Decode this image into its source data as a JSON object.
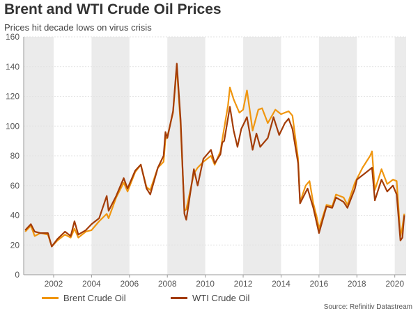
{
  "chart_data": {
    "type": "line",
    "title": "Brent and WTI Crude Oil Prices",
    "subtitle": "Prices hit decade lows on virus crisis",
    "source": "Source: Refinitiv Datastream",
    "xlim": [
      2000.42,
      2020.6
    ],
    "ylim": [
      0,
      160
    ],
    "x_ticks": [
      2002,
      2004,
      2006,
      2008,
      2010,
      2012,
      2014,
      2016,
      2018,
      2020
    ],
    "y_ticks": [
      0,
      20,
      40,
      60,
      80,
      100,
      120,
      140,
      160
    ],
    "grid": "horizontal",
    "shaded_bands": "alternating two-year bands",
    "legend_position": "bottom",
    "series": [
      {
        "name": "Brent Crude Oil",
        "color": "#f0960f",
        "points": [
          [
            2000.5,
            29
          ],
          [
            2000.8,
            33
          ],
          [
            2001.0,
            26
          ],
          [
            2001.3,
            28
          ],
          [
            2001.7,
            27
          ],
          [
            2001.9,
            19
          ],
          [
            2002.2,
            23
          ],
          [
            2002.6,
            27
          ],
          [
            2002.9,
            25
          ],
          [
            2003.1,
            31
          ],
          [
            2003.3,
            25
          ],
          [
            2003.7,
            29
          ],
          [
            2004.0,
            30
          ],
          [
            2004.4,
            36
          ],
          [
            2004.8,
            41
          ],
          [
            2004.9,
            38
          ],
          [
            2005.3,
            52
          ],
          [
            2005.7,
            62
          ],
          [
            2005.9,
            56
          ],
          [
            2006.3,
            69
          ],
          [
            2006.6,
            74
          ],
          [
            2006.9,
            59
          ],
          [
            2007.1,
            57
          ],
          [
            2007.5,
            72
          ],
          [
            2007.8,
            76
          ],
          [
            2007.9,
            91
          ],
          [
            2008.0,
            93
          ],
          [
            2008.3,
            109
          ],
          [
            2008.5,
            140
          ],
          [
            2008.7,
            100
          ],
          [
            2008.9,
            43
          ],
          [
            2009.0,
            44
          ],
          [
            2009.4,
            68
          ],
          [
            2009.6,
            72
          ],
          [
            2009.9,
            76
          ],
          [
            2010.3,
            80
          ],
          [
            2010.5,
            74
          ],
          [
            2010.8,
            83
          ],
          [
            2010.9,
            91
          ],
          [
            2011.2,
            114
          ],
          [
            2011.3,
            126
          ],
          [
            2011.5,
            118
          ],
          [
            2011.8,
            109
          ],
          [
            2012.0,
            111
          ],
          [
            2012.2,
            124
          ],
          [
            2012.5,
            97
          ],
          [
            2012.8,
            111
          ],
          [
            2013.0,
            112
          ],
          [
            2013.3,
            102
          ],
          [
            2013.7,
            111
          ],
          [
            2014.0,
            108
          ],
          [
            2014.4,
            110
          ],
          [
            2014.6,
            107
          ],
          [
            2014.9,
            78
          ],
          [
            2015.0,
            49
          ],
          [
            2015.3,
            60
          ],
          [
            2015.5,
            63
          ],
          [
            2015.7,
            48
          ],
          [
            2015.9,
            38
          ],
          [
            2016.0,
            31
          ],
          [
            2016.4,
            47
          ],
          [
            2016.7,
            46
          ],
          [
            2016.9,
            54
          ],
          [
            2017.3,
            52
          ],
          [
            2017.5,
            47
          ],
          [
            2017.9,
            62
          ],
          [
            2018.3,
            72
          ],
          [
            2018.7,
            80
          ],
          [
            2018.8,
            83
          ],
          [
            2018.95,
            57
          ],
          [
            2019.3,
            71
          ],
          [
            2019.6,
            61
          ],
          [
            2019.9,
            64
          ],
          [
            2020.1,
            63
          ],
          [
            2020.3,
            26
          ],
          [
            2020.4,
            32
          ],
          [
            2020.5,
            41
          ]
        ]
      },
      {
        "name": "WTI Crude Oil",
        "color": "#a33c07",
        "points": [
          [
            2000.5,
            30
          ],
          [
            2000.8,
            34
          ],
          [
            2001.0,
            29
          ],
          [
            2001.3,
            28
          ],
          [
            2001.7,
            28
          ],
          [
            2001.9,
            19
          ],
          [
            2002.2,
            24
          ],
          [
            2002.6,
            29
          ],
          [
            2002.9,
            26
          ],
          [
            2003.1,
            36
          ],
          [
            2003.3,
            27
          ],
          [
            2003.7,
            30
          ],
          [
            2004.0,
            34
          ],
          [
            2004.4,
            38
          ],
          [
            2004.8,
            53
          ],
          [
            2004.9,
            43
          ],
          [
            2005.3,
            53
          ],
          [
            2005.7,
            65
          ],
          [
            2005.9,
            58
          ],
          [
            2006.3,
            70
          ],
          [
            2006.6,
            74
          ],
          [
            2006.9,
            58
          ],
          [
            2007.1,
            54
          ],
          [
            2007.5,
            72
          ],
          [
            2007.8,
            80
          ],
          [
            2007.9,
            96
          ],
          [
            2008.0,
            92
          ],
          [
            2008.3,
            110
          ],
          [
            2008.5,
            142
          ],
          [
            2008.7,
            104
          ],
          [
            2008.9,
            41
          ],
          [
            2009.0,
            37
          ],
          [
            2009.4,
            71
          ],
          [
            2009.6,
            60
          ],
          [
            2009.9,
            78
          ],
          [
            2010.3,
            84
          ],
          [
            2010.5,
            75
          ],
          [
            2010.8,
            81
          ],
          [
            2010.9,
            89
          ],
          [
            2011.0,
            90
          ],
          [
            2011.3,
            113
          ],
          [
            2011.5,
            97
          ],
          [
            2011.7,
            86
          ],
          [
            2011.9,
            98
          ],
          [
            2012.2,
            106
          ],
          [
            2012.5,
            84
          ],
          [
            2012.7,
            95
          ],
          [
            2012.9,
            86
          ],
          [
            2013.3,
            92
          ],
          [
            2013.6,
            106
          ],
          [
            2013.9,
            94
          ],
          [
            2014.2,
            102
          ],
          [
            2014.4,
            105
          ],
          [
            2014.6,
            98
          ],
          [
            2014.9,
            75
          ],
          [
            2015.0,
            48
          ],
          [
            2015.4,
            58
          ],
          [
            2015.7,
            45
          ],
          [
            2016.0,
            28
          ],
          [
            2016.4,
            46
          ],
          [
            2016.7,
            45
          ],
          [
            2016.9,
            52
          ],
          [
            2017.3,
            49
          ],
          [
            2017.5,
            45
          ],
          [
            2017.9,
            58
          ],
          [
            2018.0,
            64
          ],
          [
            2018.4,
            68
          ],
          [
            2018.8,
            72
          ],
          [
            2018.95,
            50
          ],
          [
            2019.3,
            64
          ],
          [
            2019.6,
            56
          ],
          [
            2019.9,
            60
          ],
          [
            2020.1,
            54
          ],
          [
            2020.3,
            23
          ],
          [
            2020.4,
            25
          ],
          [
            2020.5,
            40
          ]
        ]
      }
    ]
  }
}
